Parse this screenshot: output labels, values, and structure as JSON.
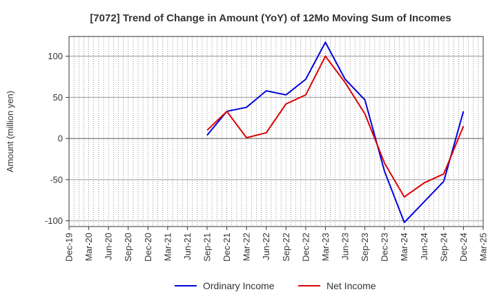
{
  "chart_data": {
    "type": "line",
    "title": "[7072]  Trend of Change in Amount (YoY) of 12Mo Moving Sum of Incomes",
    "ylabel": "Amount (million yen)",
    "xlabel": "",
    "categories": [
      "Dec-19",
      "Mar-20",
      "Jun-20",
      "Sep-20",
      "Dec-20",
      "Mar-21",
      "Jun-21",
      "Sep-21",
      "Dec-21",
      "Mar-22",
      "Jun-22",
      "Sep-22",
      "Dec-22",
      "Mar-23",
      "Jun-23",
      "Sep-23",
      "Dec-23",
      "Mar-24",
      "Jun-24",
      "Sep-24",
      "Dec-24",
      "Mar-25"
    ],
    "ylim": [
      -107,
      124
    ],
    "yticks": [
      -100,
      -50,
      0,
      50,
      100
    ],
    "grid": true,
    "legend_position": "bottom",
    "series": [
      {
        "name": "Ordinary Income",
        "color": "#0000dd",
        "values": [
          null,
          null,
          null,
          null,
          null,
          null,
          null,
          4,
          33,
          38,
          58,
          53,
          72,
          117,
          72,
          47,
          -40,
          -102,
          -77,
          -52,
          33,
          null
        ]
      },
      {
        "name": "Net Income",
        "color": "#dd0000",
        "values": [
          null,
          null,
          null,
          null,
          null,
          null,
          null,
          10,
          33,
          1,
          7,
          42,
          53,
          100,
          68,
          30,
          -30,
          -71,
          -54,
          -43,
          15,
          null
        ]
      }
    ]
  }
}
